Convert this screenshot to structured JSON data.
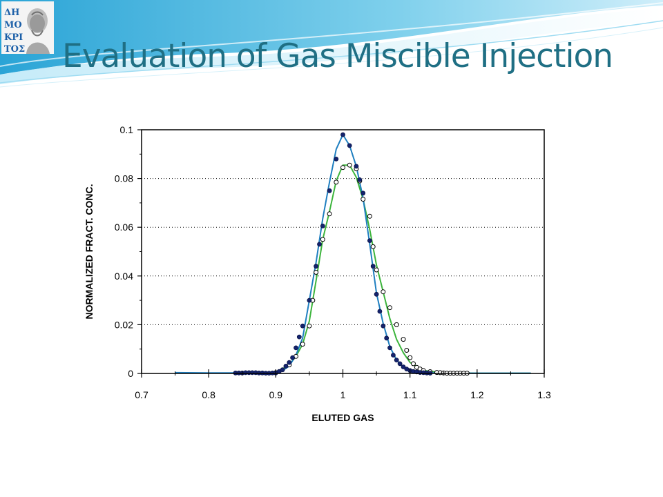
{
  "slide": {
    "title": "Evaluation of Gas Miscible Injection"
  },
  "logo": {
    "text": "ΔΗΜΟΚΡΙΤΟΣ"
  },
  "colors": {
    "title": "#1f6f84",
    "blue_series": "#1f7fc0",
    "green_series": "#3cb43c",
    "filled_marker": "#14236e"
  },
  "chart_data": {
    "type": "line",
    "xlabel": "ELUTED GAS",
    "ylabel": "NORMALIZED FRACT. CONC.",
    "xlim": [
      0.7,
      1.3
    ],
    "ylim": [
      0,
      0.1
    ],
    "xticks": [
      "0.7",
      "0.8",
      "0.9",
      "1",
      "1.1",
      "1.2",
      "1.3"
    ],
    "yticks": [
      "0",
      "0.02",
      "0.04",
      "0.06",
      "0.08",
      "0.1"
    ],
    "grid": "horizontal dotted",
    "series": [
      {
        "marker": "filled-circle",
        "x": [
          0.84,
          0.845,
          0.85,
          0.855,
          0.86,
          0.865,
          0.87,
          0.875,
          0.88,
          0.885,
          0.89,
          0.895,
          0.9,
          0.905,
          0.91,
          0.915,
          0.92,
          0.925,
          0.93,
          0.935,
          0.94,
          0.95,
          0.96,
          0.965,
          0.97,
          0.98,
          0.99,
          1.0,
          1.01,
          1.02,
          1.025,
          1.03,
          1.04,
          1.045,
          1.05,
          1.055,
          1.06,
          1.065,
          1.07,
          1.075,
          1.08,
          1.085,
          1.09,
          1.095,
          1.1,
          1.105,
          1.11,
          1.115,
          1.12,
          1.125,
          1.13
        ],
        "y": [
          0.0002,
          0.0002,
          0.0002,
          0.0003,
          0.0003,
          0.0003,
          0.0003,
          0.0002,
          0.0002,
          0.0001,
          0.0001,
          0.0002,
          0.0002,
          0.0008,
          0.0015,
          0.003,
          0.0045,
          0.0065,
          0.0105,
          0.015,
          0.0195,
          0.03,
          0.044,
          0.053,
          0.0605,
          0.075,
          0.088,
          0.098,
          0.0935,
          0.085,
          0.0795,
          0.074,
          0.0545,
          0.044,
          0.0325,
          0.0255,
          0.0195,
          0.0145,
          0.0105,
          0.0075,
          0.0055,
          0.004,
          0.0027,
          0.0018,
          0.0012,
          0.0008,
          0.0006,
          0.0004,
          0.0003,
          0.0002,
          0.0001
        ]
      },
      {
        "marker": "open-circle",
        "x": [
          0.9,
          0.92,
          0.93,
          0.94,
          0.95,
          0.955,
          0.96,
          0.97,
          0.98,
          0.99,
          1.0,
          1.01,
          1.02,
          1.025,
          1.03,
          1.04,
          1.045,
          1.05,
          1.06,
          1.07,
          1.08,
          1.09,
          1.095,
          1.1,
          1.105,
          1.11,
          1.115,
          1.12,
          1.13,
          1.14,
          1.145,
          1.15,
          1.155,
          1.16,
          1.165,
          1.17,
          1.175,
          1.18,
          1.185
        ],
        "y": [
          0.0003,
          0.0035,
          0.007,
          0.012,
          0.0195,
          0.03,
          0.0415,
          0.055,
          0.0655,
          0.0785,
          0.0845,
          0.0855,
          0.084,
          0.079,
          0.0715,
          0.0645,
          0.052,
          0.0425,
          0.0335,
          0.027,
          0.02,
          0.014,
          0.0095,
          0.0065,
          0.004,
          0.0025,
          0.0018,
          0.0012,
          0.0007,
          0.0004,
          0.0003,
          0.0002,
          0.0001,
          0.0001,
          0.0001,
          0.0001,
          0.0001,
          0.0001,
          0.0001
        ]
      }
    ],
    "fit_lines": [
      {
        "color": "#1f7fc0",
        "x": [
          0.75,
          0.8,
          0.85,
          0.88,
          0.9,
          0.91,
          0.92,
          0.93,
          0.94,
          0.95,
          0.96,
          0.97,
          0.98,
          0.99,
          1.0,
          1.01,
          1.02,
          1.03,
          1.04,
          1.05,
          1.06,
          1.07,
          1.08,
          1.09,
          1.1,
          1.12,
          1.15,
          1.2,
          1.28
        ],
        "y": [
          0.0003,
          0.0002,
          0.0002,
          0.0002,
          0.0003,
          0.0012,
          0.003,
          0.0075,
          0.0145,
          0.03,
          0.0455,
          0.0635,
          0.0785,
          0.092,
          0.098,
          0.0935,
          0.085,
          0.072,
          0.053,
          0.033,
          0.0205,
          0.011,
          0.0055,
          0.0025,
          0.0012,
          0.0003,
          0.0001,
          0.0001,
          0.0001
        ]
      },
      {
        "color": "#3cb43c",
        "x": [
          0.9,
          0.92,
          0.93,
          0.94,
          0.95,
          0.96,
          0.97,
          0.98,
          0.99,
          1.0,
          1.01,
          1.02,
          1.03,
          1.04,
          1.05,
          1.06,
          1.07,
          1.08,
          1.09,
          1.1,
          1.12,
          1.15,
          1.2,
          1.28
        ],
        "y": [
          0.0003,
          0.0035,
          0.007,
          0.012,
          0.0215,
          0.038,
          0.055,
          0.0665,
          0.079,
          0.0855,
          0.0855,
          0.0805,
          0.0715,
          0.059,
          0.0445,
          0.0335,
          0.0225,
          0.014,
          0.0085,
          0.0045,
          0.0012,
          0.0003,
          0.0001,
          0.0001
        ]
      }
    ]
  }
}
